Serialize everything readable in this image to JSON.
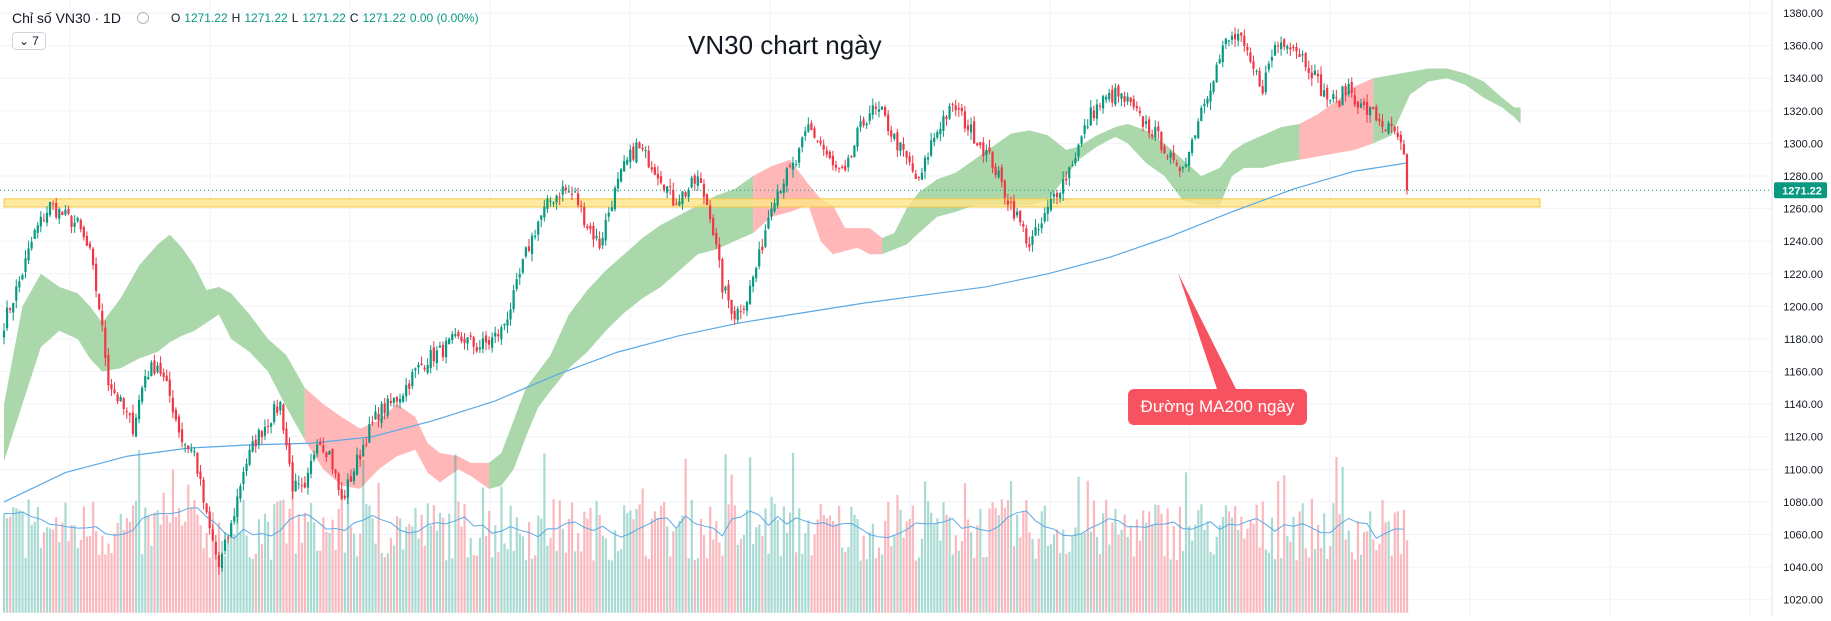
{
  "header": {
    "symbol": "Chỉ số VN30 · 1D",
    "ohlc_o_label": "O",
    "ohlc_o": "1271.22",
    "ohlc_h_label": "H",
    "ohlc_h": "1271.22",
    "ohlc_l_label": "L",
    "ohlc_l": "1271.22",
    "ohlc_c_label": "C",
    "ohlc_c": "1271.22",
    "change": "0.00 (0.00%)",
    "indicator_count": "7"
  },
  "annotation": "Đường MA200 ngày",
  "price_tag": "1271.22",
  "colors": {
    "up": "#089981",
    "down": "#f23645",
    "cloud_bull": "#a5d6a7",
    "cloud_bear": "#ffb3b3",
    "ma200": "#5aa9e6",
    "support_zone": "#ffe58a",
    "annotation_bg": "#f7525f"
  },
  "chart_data": {
    "type": "candlestick",
    "title": "VN30 chart ngày",
    "interval": "1D",
    "ylim": [
      1010,
      1388
    ],
    "y_ticks": [
      "1380.00",
      "1360.00",
      "1340.00",
      "1320.00",
      "1300.00",
      "1280.00",
      "1260.00",
      "1240.00",
      "1220.00",
      "1200.00",
      "1180.00",
      "1160.00",
      "1140.00",
      "1120.00",
      "1100.00",
      "1080.00",
      "1060.00",
      "1040.00",
      "1020.00"
    ],
    "last_price": 1271.22,
    "grid": true,
    "support_zone": [
      1261,
      1266
    ],
    "close_path": [
      [
        0,
        1190
      ],
      [
        5,
        1215
      ],
      [
        10,
        1245
      ],
      [
        15,
        1262
      ],
      [
        20,
        1255
      ],
      [
        24,
        1250
      ],
      [
        28,
        1232
      ],
      [
        31,
        1200
      ],
      [
        34,
        1155
      ],
      [
        38,
        1140
      ],
      [
        42,
        1126
      ],
      [
        46,
        1158
      ],
      [
        50,
        1165
      ],
      [
        54,
        1145
      ],
      [
        58,
        1118
      ],
      [
        62,
        1110
      ],
      [
        66,
        1070
      ],
      [
        70,
        1040
      ],
      [
        74,
        1065
      ],
      [
        78,
        1100
      ],
      [
        82,
        1118
      ],
      [
        86,
        1130
      ],
      [
        90,
        1140
      ],
      [
        94,
        1090
      ],
      [
        98,
        1085
      ],
      [
        102,
        1120
      ],
      [
        106,
        1110
      ],
      [
        110,
        1080
      ],
      [
        114,
        1100
      ],
      [
        118,
        1120
      ],
      [
        122,
        1135
      ],
      [
        126,
        1140
      ],
      [
        130,
        1148
      ],
      [
        134,
        1160
      ],
      [
        138,
        1168
      ],
      [
        142,
        1172
      ],
      [
        146,
        1178
      ],
      [
        150,
        1180
      ],
      [
        154,
        1175
      ],
      [
        158,
        1178
      ],
      [
        162,
        1185
      ],
      [
        166,
        1205
      ],
      [
        170,
        1232
      ],
      [
        174,
        1252
      ],
      [
        178,
        1265
      ],
      [
        182,
        1272
      ],
      [
        186,
        1268
      ],
      [
        190,
        1250
      ],
      [
        194,
        1238
      ],
      [
        198,
        1265
      ],
      [
        202,
        1285
      ],
      [
        206,
        1298
      ],
      [
        210,
        1290
      ],
      [
        214,
        1280
      ],
      [
        218,
        1265
      ],
      [
        222,
        1270
      ],
      [
        226,
        1278
      ],
      [
        230,
        1258
      ],
      [
        234,
        1212
      ],
      [
        238,
        1195
      ],
      [
        242,
        1205
      ],
      [
        246,
        1230
      ],
      [
        250,
        1265
      ],
      [
        254,
        1278
      ],
      [
        258,
        1288
      ],
      [
        262,
        1310
      ],
      [
        266,
        1300
      ],
      [
        270,
        1285
      ],
      [
        274,
        1280
      ],
      [
        278,
        1305
      ],
      [
        282,
        1320
      ],
      [
        286,
        1318
      ],
      [
        290,
        1303
      ],
      [
        294,
        1290
      ],
      [
        298,
        1275
      ],
      [
        302,
        1300
      ],
      [
        306,
        1316
      ],
      [
        310,
        1322
      ],
      [
        314,
        1310
      ],
      [
        318,
        1300
      ],
      [
        322,
        1288
      ],
      [
        326,
        1270
      ],
      [
        330,
        1255
      ],
      [
        334,
        1238
      ],
      [
        338,
        1250
      ],
      [
        342,
        1268
      ],
      [
        346,
        1280
      ],
      [
        350,
        1298
      ],
      [
        354,
        1318
      ],
      [
        358,
        1326
      ],
      [
        362,
        1330
      ],
      [
        366,
        1325
      ],
      [
        370,
        1315
      ],
      [
        374,
        1308
      ],
      [
        378,
        1298
      ],
      [
        382,
        1282
      ],
      [
        386,
        1295
      ],
      [
        390,
        1322
      ],
      [
        394,
        1342
      ],
      [
        398,
        1362
      ],
      [
        402,
        1366
      ],
      [
        406,
        1348
      ],
      [
        410,
        1335
      ],
      [
        414,
        1360
      ],
      [
        418,
        1364
      ],
      [
        422,
        1356
      ],
      [
        426,
        1345
      ],
      [
        430,
        1330
      ],
      [
        434,
        1325
      ],
      [
        438,
        1335
      ],
      [
        442,
        1322
      ],
      [
        446,
        1318
      ],
      [
        450,
        1310
      ],
      [
        454,
        1304
      ],
      [
        456,
        1290
      ],
      [
        457,
        1271.22
      ]
    ],
    "ma200_path": [
      [
        0,
        1080
      ],
      [
        20,
        1098
      ],
      [
        40,
        1108
      ],
      [
        60,
        1113
      ],
      [
        80,
        1115
      ],
      [
        100,
        1116
      ],
      [
        120,
        1120
      ],
      [
        140,
        1130
      ],
      [
        160,
        1142
      ],
      [
        180,
        1158
      ],
      [
        200,
        1172
      ],
      [
        220,
        1182
      ],
      [
        240,
        1190
      ],
      [
        260,
        1196
      ],
      [
        280,
        1202
      ],
      [
        300,
        1207
      ],
      [
        320,
        1212
      ],
      [
        340,
        1220
      ],
      [
        360,
        1230
      ],
      [
        380,
        1243
      ],
      [
        400,
        1258
      ],
      [
        420,
        1272
      ],
      [
        440,
        1283
      ],
      [
        457,
        1288
      ]
    ],
    "ichimoku_cloud": [
      [
        0,
        1105,
        1140
      ],
      [
        6,
        1140,
        1200
      ],
      [
        12,
        1175,
        1220
      ],
      [
        18,
        1185,
        1212
      ],
      [
        24,
        1180,
        1208
      ],
      [
        28,
        1168,
        1200
      ],
      [
        32,
        1160,
        1190
      ],
      [
        38,
        1162,
        1205
      ],
      [
        44,
        1168,
        1225
      ],
      [
        50,
        1172,
        1238
      ],
      [
        54,
        1178,
        1244
      ],
      [
        58,
        1182,
        1236
      ],
      [
        62,
        1185,
        1225
      ],
      [
        66,
        1190,
        1210
      ],
      [
        70,
        1195,
        1212
      ],
      [
        74,
        1180,
        1208
      ],
      [
        80,
        1172,
        1195
      ],
      [
        86,
        1160,
        1180
      ],
      [
        92,
        1138,
        1170
      ],
      [
        98,
        1118,
        1150
      ],
      [
        104,
        1100,
        1140
      ],
      [
        110,
        1090,
        1132
      ],
      [
        116,
        1088,
        1125
      ],
      [
        122,
        1100,
        1130
      ],
      [
        128,
        1108,
        1140
      ],
      [
        134,
        1112,
        1132
      ],
      [
        138,
        1098,
        1116
      ],
      [
        142,
        1092,
        1110
      ],
      [
        148,
        1100,
        1108
      ],
      [
        152,
        1096,
        1104
      ],
      [
        158,
        1088,
        1104
      ],
      [
        162,
        1090,
        1110
      ],
      [
        166,
        1100,
        1130
      ],
      [
        170,
        1120,
        1150
      ],
      [
        174,
        1138,
        1160
      ],
      [
        178,
        1148,
        1170
      ],
      [
        184,
        1162,
        1195
      ],
      [
        190,
        1172,
        1210
      ],
      [
        196,
        1185,
        1222
      ],
      [
        202,
        1196,
        1232
      ],
      [
        208,
        1205,
        1242
      ],
      [
        214,
        1212,
        1250
      ],
      [
        220,
        1222,
        1256
      ],
      [
        226,
        1232,
        1262
      ],
      [
        232,
        1235,
        1268
      ],
      [
        238,
        1240,
        1272
      ],
      [
        244,
        1245,
        1280
      ],
      [
        250,
        1255,
        1286
      ],
      [
        256,
        1258,
        1290
      ],
      [
        262,
        1262,
        1275
      ],
      [
        266,
        1240,
        1266
      ],
      [
        270,
        1232,
        1262
      ],
      [
        274,
        1234,
        1248
      ],
      [
        278,
        1236,
        1248
      ],
      [
        282,
        1232,
        1248
      ],
      [
        286,
        1232,
        1242
      ],
      [
        290,
        1235,
        1245
      ],
      [
        294,
        1238,
        1260
      ],
      [
        298,
        1245,
        1270
      ],
      [
        304,
        1255,
        1278
      ],
      [
        310,
        1258,
        1282
      ],
      [
        316,
        1262,
        1290
      ],
      [
        322,
        1262,
        1298
      ],
      [
        328,
        1262,
        1306
      ],
      [
        334,
        1262,
        1308
      ],
      [
        340,
        1265,
        1305
      ],
      [
        346,
        1280,
        1296
      ],
      [
        350,
        1290,
        1298
      ],
      [
        356,
        1298,
        1305
      ],
      [
        362,
        1304,
        1310
      ],
      [
        366,
        1300,
        1312
      ],
      [
        372,
        1288,
        1308
      ],
      [
        378,
        1280,
        1300
      ],
      [
        384,
        1265,
        1290
      ],
      [
        390,
        1262,
        1280
      ],
      [
        396,
        1262,
        1285
      ],
      [
        400,
        1280,
        1295
      ],
      [
        404,
        1285,
        1300
      ],
      [
        410,
        1285,
        1305
      ],
      [
        416,
        1288,
        1310
      ],
      [
        422,
        1290,
        1312
      ],
      [
        428,
        1292,
        1318
      ],
      [
        434,
        1294,
        1326
      ],
      [
        440,
        1296,
        1335
      ],
      [
        446,
        1300,
        1340
      ],
      [
        452,
        1305,
        1342
      ],
      [
        458,
        1330,
        1344
      ],
      [
        464,
        1338,
        1346
      ],
      [
        470,
        1340,
        1346
      ],
      [
        476,
        1336,
        1343
      ],
      [
        482,
        1328,
        1338
      ],
      [
        488,
        1322,
        1328
      ],
      [
        492,
        1316,
        1322
      ],
      [
        494,
        1312,
        1322
      ]
    ],
    "volume_baseline": 1012,
    "volume_line_level": 1058
  }
}
